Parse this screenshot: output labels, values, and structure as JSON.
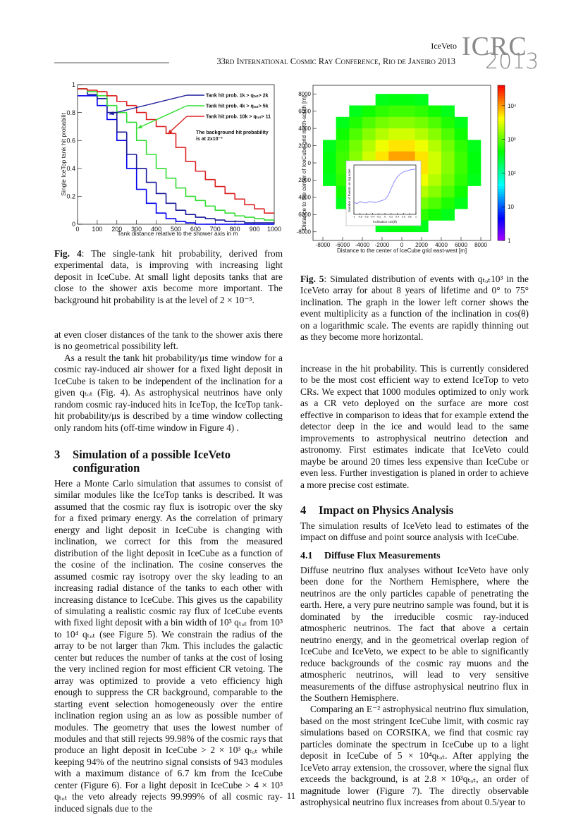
{
  "header": {
    "running_title": "IceVeto",
    "conference": "33rd International Cosmic Ray Conference, Rio de Janeiro 2013",
    "logo": "ICRC",
    "logo_year": "2013"
  },
  "chart_data": [
    {
      "type": "line",
      "step": true,
      "xlabel": "Tank distance relative to the shower axis in m",
      "ylabel": "Single IceTop tank hit probabilit",
      "x": [
        0,
        50,
        100,
        150,
        200,
        250,
        300,
        350,
        400,
        450,
        500,
        550,
        600,
        650,
        700,
        750,
        800,
        850,
        900,
        950
      ],
      "series": [
        {
          "color": "#0000ee",
          "values": [
            0.92,
            0.92,
            0.85,
            0.75,
            0.6,
            0.4,
            0.25,
            0.15,
            0.08,
            0.04,
            0.02,
            0.01,
            0,
            0,
            0,
            0,
            0,
            0,
            0,
            0
          ]
        },
        {
          "name": "Tank hit prob. 1k > qₜₒₜ> 2k",
          "color": "#1a1a9a",
          "values": [
            0.97,
            0.93,
            0.9,
            0.8,
            0.66,
            0.5,
            0.4,
            0.3,
            0.22,
            0.15,
            0.1,
            0.07,
            0.05,
            0.04,
            0.03,
            0.02,
            0.02,
            0.01,
            0.01,
            0.01
          ]
        },
        {
          "name": "Tank hit prob. 4k > qₜₒₜ> 5k",
          "color": "#33dd33",
          "values": [
            0.97,
            0.95,
            0.92,
            0.85,
            0.8,
            0.73,
            0.6,
            0.5,
            0.4,
            0.33,
            0.26,
            0.2,
            0.17,
            0.13,
            0.1,
            0.08,
            0.06,
            0.05,
            0.04,
            0.03
          ]
        },
        {
          "name": "Tank hit prob. 10k > qₜₒₜ> 11",
          "color": "#dd2222",
          "values": [
            0.97,
            0.96,
            0.95,
            0.92,
            0.88,
            0.85,
            0.8,
            0.75,
            0.7,
            0.65,
            0.55,
            0.45,
            0.38,
            0.32,
            0.27,
            0.22,
            0.18,
            0.14,
            0.11,
            0.08
          ]
        }
      ],
      "annotations": [
        "The background hit probability",
        "is at 2x10⁻³"
      ],
      "xlim": [
        0,
        1000
      ],
      "xticks": [
        0,
        100,
        200,
        300,
        400,
        500,
        600,
        700,
        800,
        900,
        1000
      ],
      "ylim": [
        0,
        1
      ],
      "yticks": [
        0,
        0.2,
        0.4,
        0.6,
        0.8,
        1
      ]
    },
    {
      "type": "heatmap",
      "xlabel": "Distance to the center of IceCube grid east-west [m]",
      "ylabel": "Distance to the center of IceCube grid north-south [m]",
      "xbins": [
        -8000,
        -6667,
        -5333,
        -4000,
        -2667,
        -1333,
        0,
        1333,
        2667,
        4000,
        5333,
        6667,
        8000
      ],
      "ybins": [
        8000,
        6667,
        5333,
        4000,
        2667,
        1333,
        0,
        -1333,
        -2667,
        -4000,
        -5333,
        -6667,
        -8000
      ],
      "values": [
        [
          null,
          null,
          null,
          null,
          340,
          380,
          380,
          340,
          null,
          null,
          null,
          null
        ],
        [
          null,
          null,
          340,
          480,
          630,
          730,
          730,
          630,
          480,
          340,
          null,
          null
        ],
        [
          null,
          340,
          550,
          850,
          1200,
          1400,
          1400,
          1200,
          850,
          550,
          340,
          null
        ],
        [
          null,
          480,
          850,
          1400,
          2100,
          2700,
          2700,
          2100,
          1400,
          850,
          480,
          null
        ],
        [
          340,
          630,
          1200,
          2100,
          3600,
          5200,
          5200,
          3600,
          2100,
          1200,
          630,
          340
        ],
        [
          380,
          730,
          1400,
          2700,
          5200,
          9400,
          9400,
          5200,
          2700,
          1400,
          730,
          380
        ],
        [
          380,
          730,
          1400,
          2700,
          5200,
          9400,
          9400,
          5200,
          2700,
          1400,
          730,
          380
        ],
        [
          340,
          630,
          1200,
          2100,
          3600,
          5200,
          5200,
          3600,
          2100,
          1200,
          630,
          340
        ],
        [
          null,
          480,
          850,
          1400,
          2100,
          2700,
          2700,
          2100,
          1400,
          850,
          480,
          null
        ],
        [
          null,
          340,
          550,
          850,
          1200,
          1400,
          1400,
          1200,
          850,
          550,
          340,
          null
        ],
        [
          null,
          null,
          340,
          480,
          630,
          730,
          730,
          630,
          480,
          340,
          null,
          null
        ],
        [
          null,
          null,
          null,
          null,
          340,
          380,
          380,
          340,
          null,
          null,
          null,
          null
        ]
      ],
      "xlim": [
        -9000,
        9000
      ],
      "xticks": [
        -8000,
        -6000,
        -4000,
        -2000,
        0,
        2000,
        4000,
        6000,
        8000
      ],
      "ylim": [
        -9000,
        9000
      ],
      "yticks": [
        8000,
        6000,
        4000,
        2000,
        0,
        {
          "value": -2000,
          "label": "2000"
        },
        {
          "value": -4000,
          "label": "4000"
        },
        {
          "value": -6000,
          "label": "6000"
        },
        -8000
      ],
      "zscale": "log",
      "zlim": [
        1,
        40000
      ],
      "zticks": [
        {
          "value": 1,
          "label": "1"
        },
        {
          "value": 10,
          "label": "10"
        },
        {
          "value": 100,
          "label": "10²"
        },
        {
          "value": 1000,
          "label": "10³"
        },
        {
          "value": 10000,
          "label": "10⁴"
        }
      ],
      "inset": {
        "type": "line",
        "xlabel": "inclination cos(θ)",
        "ylabel": "Number of Events on log scale",
        "color": "#7f7fff",
        "x": [
          -1,
          -0.9,
          -0.8,
          -0.7,
          -0.6,
          -0.5,
          -0.4,
          -0.3,
          -0.2,
          -0.1,
          0,
          0.1,
          0.2,
          0.3,
          0.4,
          0.5,
          0.6,
          0.7,
          0.8,
          0.9,
          1
        ],
        "values": [
          1.2,
          1.1,
          1.3,
          1.2,
          1.15,
          1.3,
          1.25,
          1.2,
          1.3,
          1.4,
          1.5,
          1.9,
          2.6,
          3.3,
          3.8,
          4.1,
          4.3,
          4.4,
          4.5,
          4.55,
          4.6
        ],
        "xlim": [
          -1,
          1
        ],
        "xticks": [
          -1,
          -0.8,
          -0.6,
          -0.4,
          -0.2,
          0,
          0.2,
          0.4,
          0.6,
          0.8,
          1
        ],
        "ylim": [
          0,
          5
        ]
      }
    }
  ],
  "captions": [
    {
      "label": "Fig. 4",
      "text": ": The single-tank hit probability, derived from experimental data, is improving with increasing light deposit in IceCube. At small light deposits tanks that are close to the shower axis become more important. The background hit probability is at the level of 2 × 10⁻³."
    },
    {
      "label": "Fig. 5",
      "text": ": Simulated distribution of events with qₜₒₜ10³ in the IceVeto array for about 8 years of lifetime and 0° to 75° inclination. The graph in the lower left corner shows the event multiplicity as a function of the inclination in cos(θ) on a logarithmic scale. The events are rapidly thinning out as they become more horizontal."
    }
  ],
  "body": {
    "left": [
      "at even closer distances of the tank to the shower axis there is no geometrical possibility left.",
      "As a result the tank hit probability/μs time window for a cosmic ray-induced air shower for a fixed light deposit in IceCube is taken to be independent of the inclination for a given qₜₒₜ (Fig. 4). As astrophysical neutrinos have only random cosmic ray-induced hits in IceTop, the IceTop tank-hit probability/μs is described by a time window collecting only random hits (off-time window in Figure 4) ."
    ],
    "section_3": {
      "number": "3",
      "title": "Simulation of a possible IceVeto configuration"
    },
    "section_3_text": "Here a Monte Carlo simulation that assumes to consist of similar modules like the IceTop tanks is described. It was assumed that the cosmic ray flux is isotropic over the sky for a fixed primary energy. As the correlation of primary energy and light deposit in IceCube is changing with inclination, we correct for this from the measured distribution of the light deposit in IceCube as a function of the cosine of the inclination. The cosine conserves the assumed cosmic ray isotropy over the sky leading to an increasing radial distance of the tanks to each other with increasing distance to IceCube. This gives us the capability of simulating a realistic cosmic ray flux of IceCube events with fixed light deposit with a bin width of 10³ qₜₒₜ from 10³ to 10⁴ qₜₒₜ (see Figure 5). We constrain the radius of the array to be not larger than 7km. This includes the galactic center but reduces the number of tanks at the cost of losing the very inclined region for most efficient CR vetoing. The array was optimized to provide a veto efficiency high enough to suppress the CR background, comparable to the starting event selection homogeneously over the entire inclination region using an as low as possible number of modules. The geometry that uses the lowest number of modules and that still rejects 99.98% of the cosmic rays that produce an light deposit in IceCube > 2 × 10³ qₜₒₜ while keeping 94% of the neutrino signal consists of 943 modules with a maximum distance of 6.7 km from the IceCube center (Figure 6). For a light deposit in IceCube > 4 × 10³ qₜₒₜ the veto already rejects 99.999% of all cosmic ray-induced signals due to the",
    "right_top": "increase in the hit probability. This is currently considered to be the most cost efficient way to extend IceTop to veto CRs. We expect that 1000 modules optimized to only work as a CR veto deployed on the surface are more cost effective in comparison to ideas that for example extend the detector deep in the ice and would lead to the same improvements to astrophysical neutrino detection and astronomy. First estimates indicate that IceVeto could maybe be around 20 times less expensive than IceCube or even less. Further investigation is planed in order to achieve a more precise cost estimate.",
    "section_4": {
      "number": "4",
      "title": "Impact on Physics Analysis"
    },
    "section_4_text": "The simulation results of IceVeto lead to estimates of the impact on diffuse and point source analysis with IceCube.",
    "section_4_1": {
      "number": "4.1",
      "title": "Diffuse Flux Measurements"
    },
    "section_4_1_text": [
      "Diffuse neutrino flux analyses without IceVeto have only been done for the Northern Hemisphere, where the neutrinos are the only particles capable of penetrating the earth. Here, a very pure neutrino sample was found, but it is dominated by the irreducible cosmic ray-induced atmospheric neutrinos. The fact that above a certain neutrino energy, and in the geometrical overlap region of IceCube and IceVeto, we expect to be able to significantly reduce backgrounds of the cosmic ray muons and the atmospheric neutrinos, will lead to very sensitive measurements of the diffuse astrophysical neutrino flux in the Southern Hemisphere.",
      "Comparing an E⁻² astrophysical neutrino flux simulation, based on the most stringent IceCube limit, with cosmic ray simulations based on CORSIKA, we find that cosmic ray particles dominate the spectrum in IceCube up to a light deposit in IceCube of 5 × 10⁴qₜₒₜ. After applying the IceVeto array extension, the crossover, where the signal flux exceeds the background, is at 2.8 × 10³qₜₒₜ, an order of magnitude lower (Figure 7). The directly observable astrophysical neutrino flux increases from about 0.5/year to"
    ]
  },
  "page_number": "11"
}
